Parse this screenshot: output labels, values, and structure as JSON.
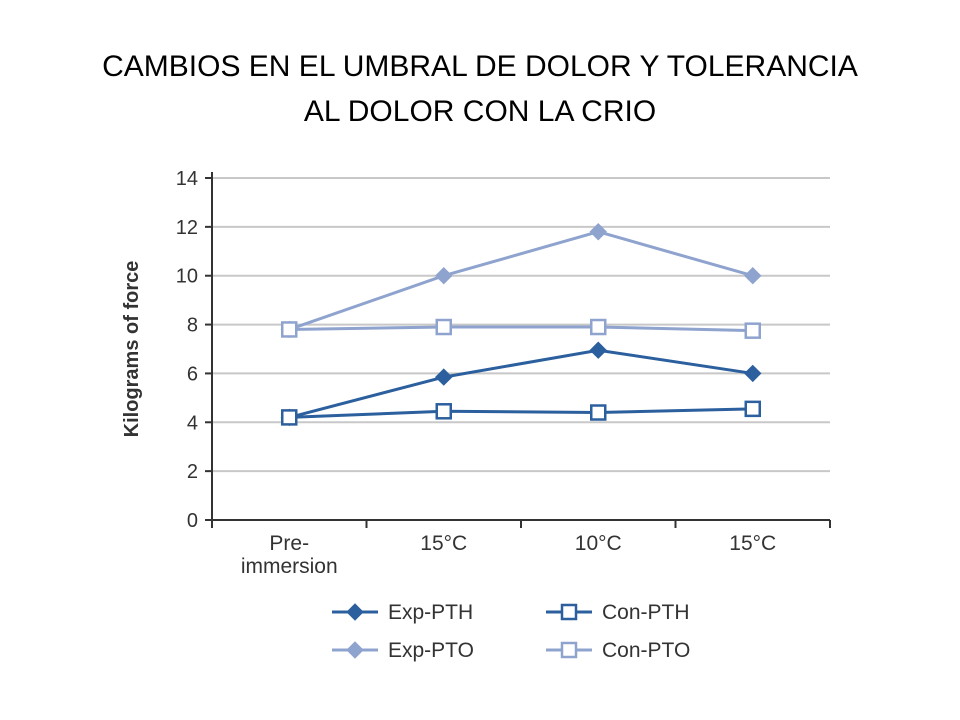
{
  "slide": {
    "title_line1": "CAMBIOS EN EL UMBRAL DE DOLOR Y TOLERANCIA",
    "title_line2": "AL DOLOR CON LA CRIO"
  },
  "chart_data": {
    "type": "line",
    "title": "CAMBIOS EN EL UMBRAL DE DOLOR Y TOLERANCIA AL DOLOR CON LA CRIO",
    "xlabel": "",
    "ylabel": "Kilograms of force",
    "ylim": [
      0,
      14
    ],
    "yticks": [
      0,
      2,
      4,
      6,
      8,
      10,
      12,
      14
    ],
    "grid": true,
    "legend_position": "bottom",
    "categories": [
      [
        "Pre-",
        "immersion"
      ],
      [
        "15°C"
      ],
      [
        "10°C"
      ],
      [
        "15°C"
      ]
    ],
    "series": [
      {
        "name": "Exp-PTH",
        "values": [
          4.2,
          5.85,
          6.95,
          6.0
        ],
        "color": "#2b5f9e",
        "marker": "diamond",
        "fill": "filled"
      },
      {
        "name": "Con-PTH",
        "values": [
          4.2,
          4.45,
          4.4,
          4.55
        ],
        "color": "#2b5f9e",
        "marker": "square",
        "fill": "open"
      },
      {
        "name": "Exp-PTO",
        "values": [
          7.8,
          10.0,
          11.8,
          10.0
        ],
        "color": "#8fa3cf",
        "marker": "diamond",
        "fill": "filled"
      },
      {
        "name": "Con-PTO",
        "values": [
          7.8,
          7.9,
          7.9,
          7.75
        ],
        "color": "#8fa3cf",
        "marker": "square",
        "fill": "open"
      }
    ],
    "colors": {
      "grid": "#c8c8c8",
      "axis": "#333333"
    }
  }
}
